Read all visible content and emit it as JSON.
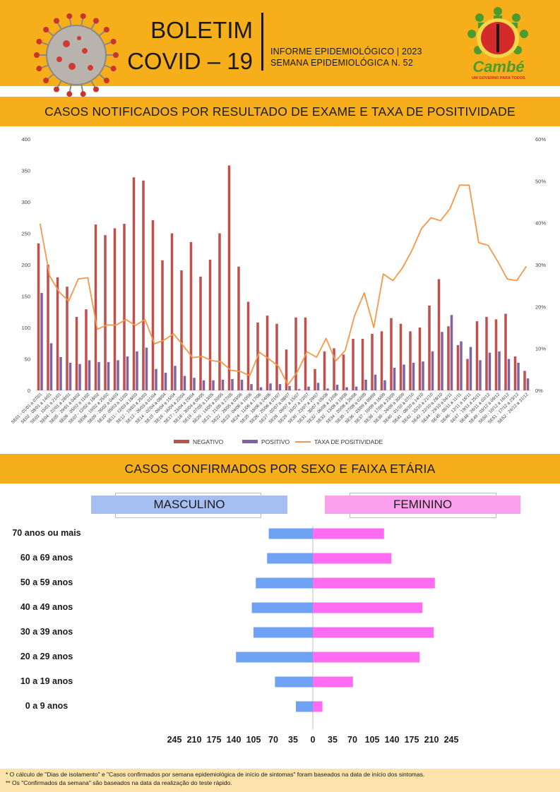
{
  "header": {
    "title_line1": "BOLETIM",
    "title_line2": "COVID – 19",
    "subtitle1": "INFORME EPIDEMIOLÓGICO | 2023",
    "subtitle2": "SEMANA EPIDEMIOLÓGICA  N. 52",
    "logo_name": "Cambé",
    "logo_tagline": "UM GOVERNO PARA TODOS"
  },
  "sections": {
    "chart1_title": "CASOS NOTIFICADOS POR RESULTADO DE EXAME E TAXA DE POSITIVIDADE",
    "chart2_title": "CASOS CONFIRMADOS POR SEXO E FAIXA ETÁRIA"
  },
  "footnotes": {
    "note1": "* O cálculo de \"Dias de isolamento\" e \"Casos confirmados por semana epidemiológica de início de sintomas\" foram baseados na data de início dos sintomas.",
    "note2": "** Os \"Confirmados da semana\" são baseados na data da realização do teste rápido."
  },
  "colors": {
    "band": "#f7ae1b",
    "negativo": "#c0504d",
    "positivo": "#8064a2",
    "taxa": "#f79646",
    "masculino": "#6fa1f5",
    "feminino": "#ff6cf2"
  },
  "chart_data": [
    {
      "type": "bar",
      "title": "CASOS NOTIFICADOS POR RESULTADO DE EXAME E TAXA DE POSITIVIDADE",
      "categories": [
        "SE01 - 01/01 a 07/01",
        "SE02 - 08/01 a 14/01",
        "SE03 - 15/01 a 21/01",
        "SE04 - 22/01 a 28/01",
        "SE05 - 29/01 a 04/02",
        "SE06 - 05/02 a 11/02",
        "SE07 - 12/02 a 18/02",
        "SE08 - 19/02 a 25/02",
        "SE09 - 26/02 a 04/03",
        "SE10 - 05/03 a 11/03",
        "SE11 - 12/03 a 18/03",
        "SE12 - 19/03 a 25/03",
        "SE13 - 26/03 a 01/04",
        "SE14 - 02/04 a 08/04",
        "SE15 - 09/04 a 15/04",
        "SE16 - 16/04 a 22/04",
        "SE17 - 23/04 a 29/04",
        "SE18 - 30/04 a 06/05",
        "SE19 - 07/05 a 13/05",
        "SE20 - 14/05 a 20/05",
        "SE21 - 21/05 a 27/05",
        "SE22 - 28/05 a 03/06",
        "SE23 - 04/06 a 10/06",
        "SE24 - 11/06 a 17/06",
        "SE25 - 18/06 a 24/06",
        "SE26 - 25/06 a 01/07",
        "SE27 - 02/07 a 08/07",
        "SE28 - 09/07 a 15/07",
        "SE29 - 16/07 a 22/07",
        "SE30 - 23/07 a 29/07",
        "SE31 - 30/07 a 05/08",
        "SE32 - 06/08 a 12/08",
        "SE33 - 13/08 a 19/08",
        "SE34 - 20/08 a 26/08",
        "SE35 - 27/08 a 02/09",
        "SE36 - 03/09 a 09/09",
        "SE37 - 10/09 a 16/09",
        "SE38 - 17/09 a 23/09",
        "SE39 - 24/09 a 30/09",
        "SE40 - 01/10 a 07/10",
        "SE41 - 08/10 a 14/10",
        "SE42 - 15/10 a 21/10",
        "SE43 - 22/10 a 28/10",
        "SE44 - 29/10 a 04/11",
        "SE45 - 05/11 a 11/11",
        "SE46 - 12/11 a 18/11",
        "SE47 - 19/11 a 25/11",
        "SE48 - 26/11 a 02/12",
        "SE49 - 03/12 a 09/12",
        "SE50 - 10/12 a 16/12",
        "SE51 - 17/12 a 23/12",
        "SE52 - 24/12 a 31/12"
      ],
      "series": [
        {
          "name": "NEGATIVO",
          "axis": "left",
          "values": [
            234,
            200,
            180,
            165,
            117,
            129,
            264,
            247,
            258,
            265,
            339,
            334,
            271,
            207,
            250,
            191,
            236,
            181,
            208,
            250,
            358,
            197,
            141,
            108,
            119,
            106,
            65,
            116,
            116,
            34,
            62,
            67,
            57,
            82,
            82,
            90,
            94,
            115,
            106,
            94,
            100,
            135,
            177,
            102,
            72,
            50,
            110,
            117,
            113,
            122,
            54,
            31
          ]
        },
        {
          "name": "POSITIVO",
          "axis": "left",
          "values": [
            155,
            75,
            53,
            44,
            42,
            48,
            45,
            45,
            48,
            54,
            62,
            68,
            34,
            28,
            39,
            23,
            20,
            16,
            16,
            17,
            18,
            17,
            10,
            5,
            11,
            10,
            7,
            2,
            6,
            12,
            3,
            9,
            5,
            6,
            17,
            25,
            16,
            36,
            41,
            44,
            46,
            62,
            93,
            120,
            78,
            69,
            48,
            60,
            62,
            50,
            44,
            19
          ]
        },
        {
          "name": "TAXA DE POSITIVIDADE",
          "axis": "right",
          "values": [
            39.8,
            27.3,
            23.5,
            21.3,
            26.6,
            26.9,
            14.6,
            15.6,
            15.6,
            16.9,
            15.5,
            16.9,
            11.1,
            12.0,
            13.5,
            10.7,
            7.8,
            8.1,
            7.1,
            6.8,
            4.8,
            4.5,
            3.5,
            9.1,
            7.5,
            5.8,
            1.3,
            4.5,
            9.2,
            7.9,
            12.4,
            7.0,
            9.5,
            17.9,
            23.3,
            15.0,
            27.8,
            26.2,
            29.2,
            33.4,
            38.6,
            41.2,
            40.5,
            43.4,
            49.0,
            49.0,
            35.3,
            34.6,
            30.8,
            26.6,
            26.2,
            29.6
          ]
        }
      ],
      "ylim": [
        0,
        400
      ],
      "yticks": [
        0,
        50,
        100,
        150,
        200,
        250,
        300,
        350,
        400
      ],
      "y2lim": [
        0,
        60
      ],
      "y2ticks": [
        "0%",
        "10%",
        "20%",
        "30%",
        "40%",
        "50%",
        "60%"
      ],
      "legend": [
        "NEGATIVO",
        "POSITIVO",
        "TAXA DE POSITIVIDADE"
      ],
      "legend_position": "bottom",
      "grid": false
    },
    {
      "type": "bar",
      "orientation": "horizontal",
      "title": "CASOS CONFIRMADOS POR SEXO E FAIXA ETÁRIA",
      "categories": [
        "70 anos ou mais",
        "60 a 69 anos",
        "50 a 59 anos",
        "40 a 49 anos",
        "30 a 39 anos",
        "20 a 29 anos",
        "10 a 19 anos",
        "0 a 9 anos"
      ],
      "series": [
        {
          "name": "MASCULINO",
          "values": [
            78,
            81,
            101,
            108,
            105,
            136,
            67,
            30
          ]
        },
        {
          "name": "FEMININO",
          "values": [
            126,
            139,
            216,
            194,
            214,
            189,
            71,
            17
          ]
        }
      ],
      "xticks": [
        245,
        210,
        175,
        140,
        105,
        70,
        35,
        0,
        35,
        70,
        105,
        140,
        175,
        210,
        245
      ],
      "xlim": [
        -245,
        245
      ],
      "grid": false
    }
  ]
}
